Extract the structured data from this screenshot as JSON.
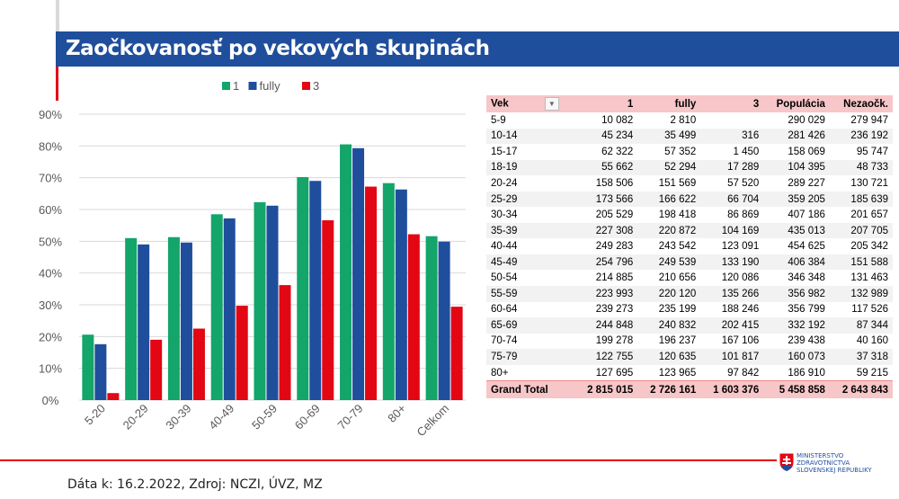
{
  "header": {
    "title": "Zaočkovanosť po vekových skupinách"
  },
  "chart_data": {
    "type": "bar",
    "categories": [
      "5-20",
      "20-29",
      "30-39",
      "40-49",
      "50-59",
      "60-69",
      "70-79",
      "80+",
      "Celkom"
    ],
    "series": [
      {
        "name": "1",
        "color": "#13a56a",
        "values": [
          20.6,
          51.0,
          51.3,
          58.5,
          62.3,
          70.2,
          80.5,
          68.3,
          51.6
        ]
      },
      {
        "name": "fully",
        "color": "#1f4e9c",
        "values": [
          17.6,
          49.0,
          49.6,
          57.2,
          61.2,
          69.0,
          79.3,
          66.3,
          49.9
        ]
      },
      {
        "name": "3",
        "color": "#e30613",
        "values": [
          2.2,
          19.0,
          22.5,
          29.7,
          36.2,
          56.6,
          67.2,
          52.2,
          29.4
        ]
      }
    ],
    "yticks": [
      "0%",
      "10%",
      "20%",
      "30%",
      "40%",
      "50%",
      "60%",
      "70%",
      "80%",
      "90%"
    ],
    "ylim": [
      0,
      90
    ],
    "grid": true,
    "legend": "top"
  },
  "table": {
    "headers": [
      "Vek",
      "1",
      "fully",
      "3",
      "Populácia",
      "Nezaočk."
    ],
    "rows": [
      [
        "5-9",
        "10 082",
        "2 810",
        "",
        "290 029",
        "279 947"
      ],
      [
        "10-14",
        "45 234",
        "35 499",
        "316",
        "281 426",
        "236 192"
      ],
      [
        "15-17",
        "62 322",
        "57 352",
        "1 450",
        "158 069",
        "95 747"
      ],
      [
        "18-19",
        "55 662",
        "52 294",
        "17 289",
        "104 395",
        "48 733"
      ],
      [
        "20-24",
        "158 506",
        "151 569",
        "57 520",
        "289 227",
        "130 721"
      ],
      [
        "25-29",
        "173 566",
        "166 622",
        "66 704",
        "359 205",
        "185 639"
      ],
      [
        "30-34",
        "205 529",
        "198 418",
        "86 869",
        "407 186",
        "201 657"
      ],
      [
        "35-39",
        "227 308",
        "220 872",
        "104 169",
        "435 013",
        "207 705"
      ],
      [
        "40-44",
        "249 283",
        "243 542",
        "123 091",
        "454 625",
        "205 342"
      ],
      [
        "45-49",
        "254 796",
        "249 539",
        "133 190",
        "406 384",
        "151 588"
      ],
      [
        "50-54",
        "214 885",
        "210 656",
        "120 086",
        "346 348",
        "131 463"
      ],
      [
        "55-59",
        "223 993",
        "220 120",
        "135 266",
        "356 982",
        "132 989"
      ],
      [
        "60-64",
        "239 273",
        "235 199",
        "188 246",
        "356 799",
        "117 526"
      ],
      [
        "65-69",
        "244 848",
        "240 832",
        "202 415",
        "332 192",
        "87 344"
      ],
      [
        "70-74",
        "199 278",
        "196 237",
        "167 106",
        "239 438",
        "40 160"
      ],
      [
        "75-79",
        "122 755",
        "120 635",
        "101 817",
        "160 073",
        "37 318"
      ],
      [
        "80+",
        "127 695",
        "123 965",
        "97 842",
        "186 910",
        "59 215"
      ]
    ],
    "total": [
      "Grand Total",
      "2 815 015",
      "2 726 161",
      "1 603 376",
      "5 458 858",
      "2 643 843"
    ]
  },
  "footer": {
    "text": "Dáta k: 16.2.2022, Zdroj: NCZI, ÚVZ, MZ"
  },
  "logo": {
    "line1": "MINISTERSTVO",
    "line2": "ZDRAVOTNÍCTVA",
    "line3": "SLOVENSKEJ REPUBLIKY"
  }
}
